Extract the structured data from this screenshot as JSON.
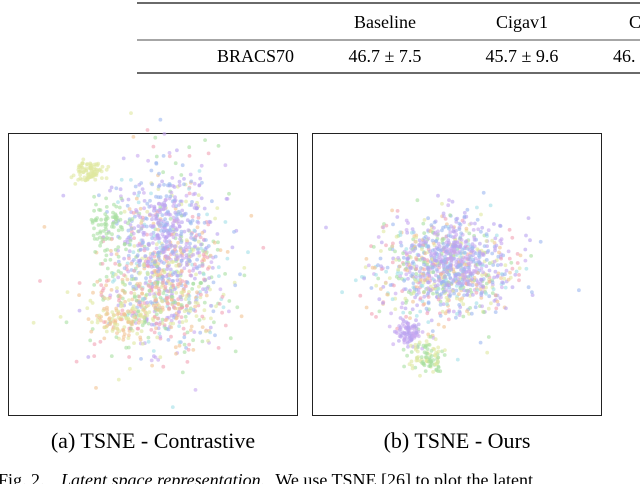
{
  "table": {
    "columns": [
      "Baseline",
      "Cigav1",
      "C"
    ],
    "rows": [
      [
        "BRACS70",
        "46.7 ± 7.5",
        "45.7 ± 9.6",
        "46."
      ]
    ]
  },
  "figures": [
    {
      "caption": "(a) TSNE - Contrastive"
    },
    {
      "caption": "(b) TSNE - Ours"
    }
  ],
  "figure_caption": {
    "label": "Fig. 2.",
    "title": "Latent space representation.",
    "text": "We use TSNE [26] to plot the latent"
  }
}
